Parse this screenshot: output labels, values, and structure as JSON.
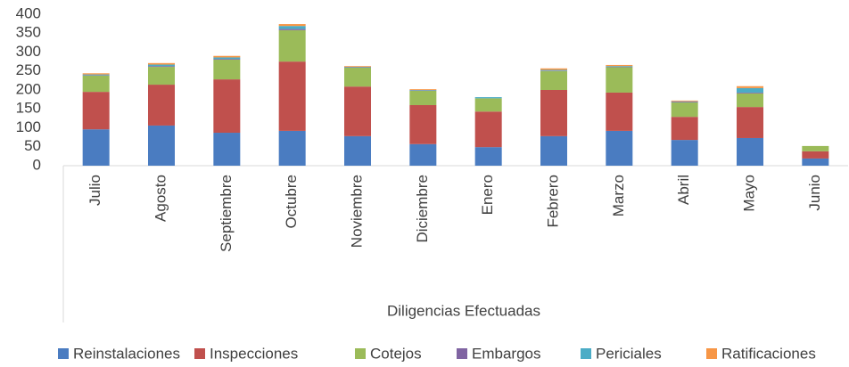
{
  "chart_data": {
    "type": "stacked_bar",
    "x_label": "Diligencias Efectuadas",
    "categories": [
      "Julio",
      "Agosto",
      "Septiembre",
      "Octubre",
      "Noviembre",
      "Diciembre",
      "Enero",
      "Febrero",
      "Marzo",
      "Abril",
      "Mayo",
      "Junio"
    ],
    "series": [
      {
        "name": "Reinstalaciones",
        "color": "#4a7cc1",
        "values": [
          96,
          106,
          87,
          92,
          78,
          57,
          49,
          78,
          92,
          68,
          73,
          19
        ]
      },
      {
        "name": "Inspecciones",
        "color": "#c0504d",
        "values": [
          99,
          108,
          141,
          183,
          131,
          103,
          94,
          122,
          101,
          61,
          82,
          19
        ]
      },
      {
        "name": "Cotejos",
        "color": "#9bbb59",
        "values": [
          43,
          47,
          52,
          83,
          50,
          38,
          35,
          50,
          67,
          38,
          36,
          14
        ]
      },
      {
        "name": "Embargos",
        "color": "#8064a2",
        "values": [
          1,
          2,
          2,
          3,
          1,
          1,
          0,
          1,
          1,
          2,
          2,
          0
        ]
      },
      {
        "name": "Periciales",
        "color": "#4bacc6",
        "values": [
          2,
          4,
          4,
          8,
          1,
          1,
          3,
          2,
          2,
          1,
          12,
          0
        ]
      },
      {
        "name": "Ratificaciones",
        "color": "#f79646",
        "values": [
          3,
          4,
          4,
          5,
          2,
          2,
          0,
          4,
          3,
          2,
          5,
          0
        ]
      }
    ],
    "ylim": [
      0,
      400
    ],
    "yticks": [
      0,
      50,
      100,
      150,
      200,
      250,
      300,
      350,
      400
    ],
    "grid": false,
    "legend": "bottom"
  }
}
